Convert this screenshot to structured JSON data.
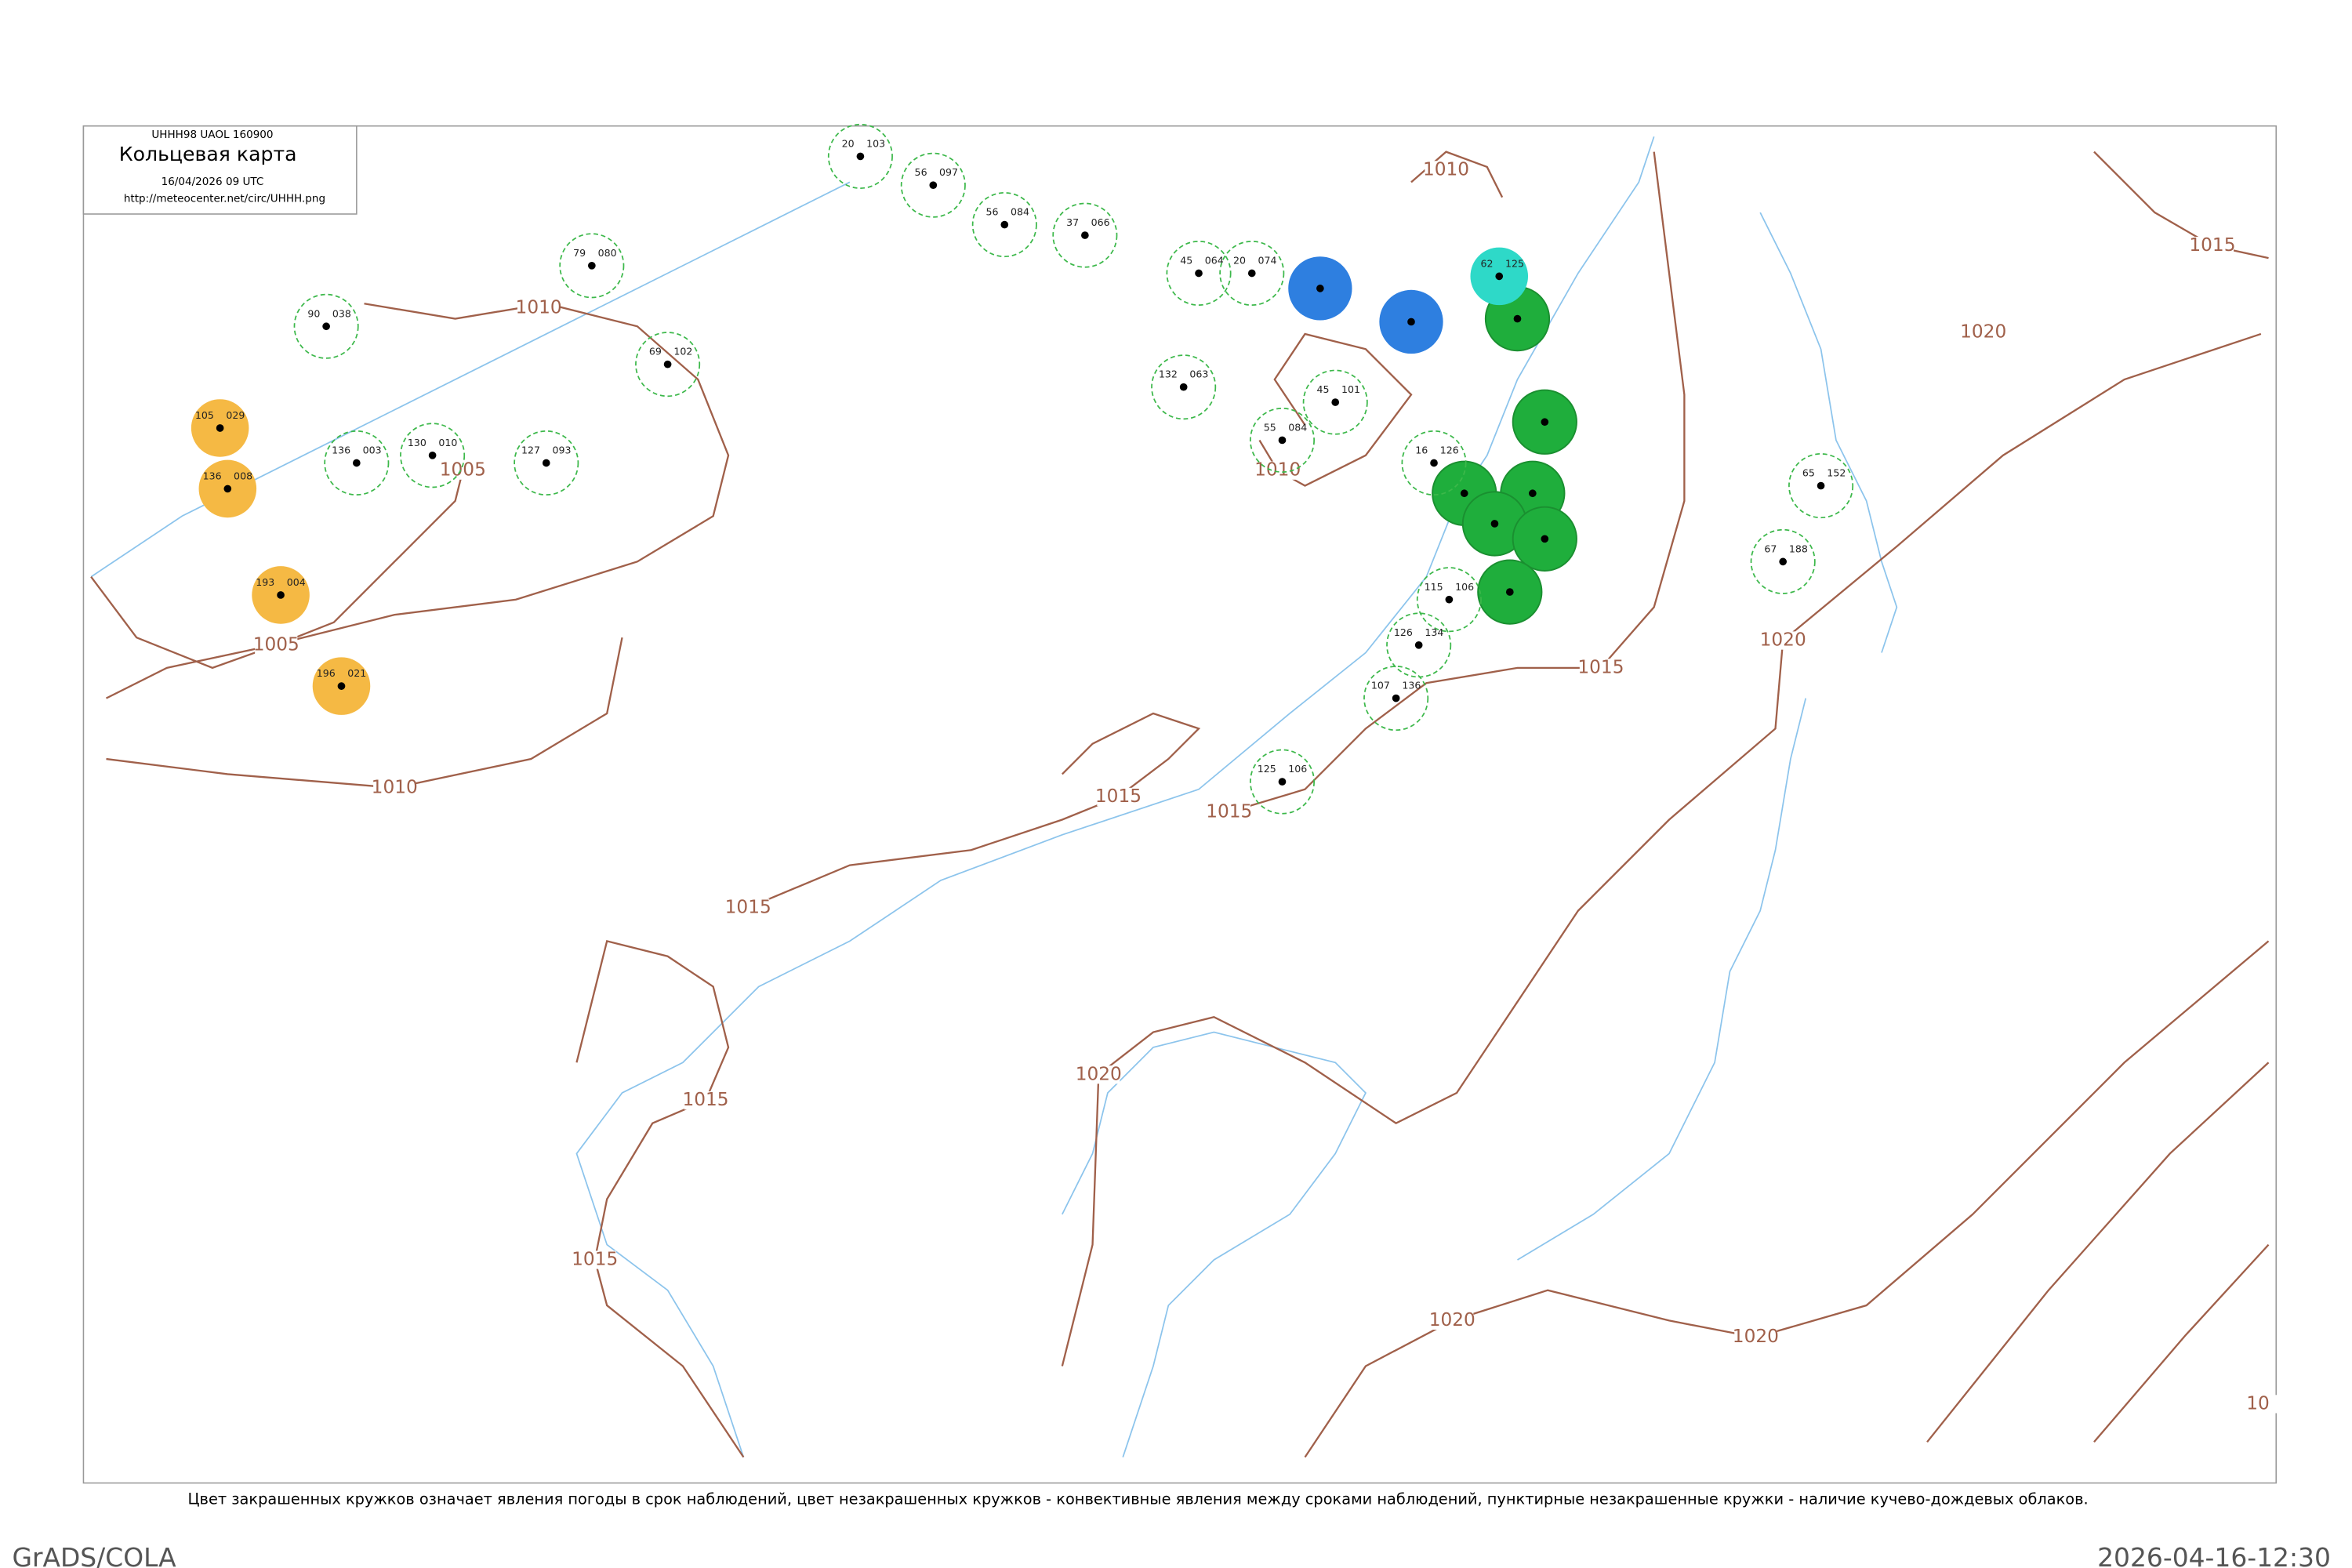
{
  "header": {
    "code": "UHHH98 UAOL 160900",
    "title": "Кольцевая карта",
    "date": "16/04/2026 09 UTC",
    "url": "http://meteocenter.net/circ/UHHH.png"
  },
  "isobars": [
    {
      "label": "1010"
    },
    {
      "label": "1005"
    },
    {
      "label": "1005"
    },
    {
      "label": "1010"
    },
    {
      "label": "1015"
    },
    {
      "label": "1015"
    },
    {
      "label": "1015"
    },
    {
      "label": "1015"
    },
    {
      "label": "1020"
    },
    {
      "label": "1015"
    },
    {
      "label": "1020"
    },
    {
      "label": "1020"
    },
    {
      "label": "1015"
    },
    {
      "label": "1020"
    },
    {
      "label": "1010"
    },
    {
      "label": "1010"
    },
    {
      "label": "1015"
    },
    {
      "label": "1020"
    },
    {
      "label": "10"
    }
  ],
  "stations": [
    {
      "left": "105",
      "right": "029"
    },
    {
      "left": "136",
      "right": "008"
    },
    {
      "left": "193",
      "right": "004"
    },
    {
      "left": "196",
      "right": "021"
    },
    {
      "left": "20",
      "right": "103"
    },
    {
      "left": "56",
      "right": "097"
    },
    {
      "left": "56",
      "right": "084"
    },
    {
      "left": "37",
      "right": "066"
    },
    {
      "left": "45",
      "right": "064"
    },
    {
      "left": "20",
      "right": "074"
    },
    {
      "left": "90",
      "right": "038"
    },
    {
      "left": "79",
      "right": "080"
    },
    {
      "left": "69",
      "right": "102"
    },
    {
      "left": "136",
      "right": "003"
    },
    {
      "left": "130",
      "right": "010"
    },
    {
      "left": "127",
      "right": "093"
    },
    {
      "left": "132",
      "right": "063"
    },
    {
      "left": "55",
      "right": "084"
    },
    {
      "left": "45",
      "right": "101"
    },
    {
      "left": "16",
      "right": "126"
    },
    {
      "left": "115",
      "right": "106"
    },
    {
      "left": "126",
      "right": "134"
    },
    {
      "left": "107",
      "right": "136"
    },
    {
      "left": "125",
      "right": "106"
    },
    {
      "left": "62",
      "right": "125"
    },
    {
      "left": "65",
      "right": "152"
    },
    {
      "left": "67",
      "right": "188"
    }
  ],
  "footer": {
    "note": "Цвет закрашенных кружков означает явления погоды в срок наблюдений, цвет незакрашенных кружков - конвективные явления между сроками наблюдений, пунктирные незакрашенные кружки - наличие кучево-дождевых облаков.",
    "software": "GrADS/COLA",
    "timestamp": "2026-04-16-12:30"
  }
}
